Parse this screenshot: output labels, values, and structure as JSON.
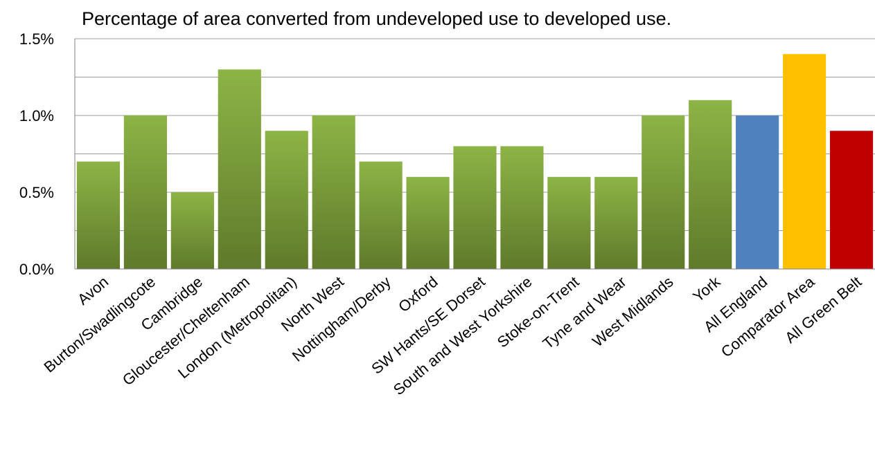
{
  "chart_data": {
    "type": "bar",
    "title": "Percentage of area converted from undeveloped use to developed use.",
    "xlabel": "",
    "ylabel": "",
    "ylim": [
      0,
      1.5
    ],
    "yticks": [
      "0.0%",
      "0.5%",
      "1.0%",
      "1.5%"
    ],
    "ytick_values": [
      0,
      0.5,
      1.0,
      1.5
    ],
    "grid": "horizontal",
    "categories": [
      "Avon",
      "Burton/Swadlingcote",
      "Cambridge",
      "Gloucester/Cheltenham",
      "London (Metropolitan)",
      "North West",
      "Nottingham/Derby",
      "Oxford",
      "SW Hants/SE Dorset",
      "South and West Yorkshire",
      "Stoke-on-Trent",
      "Tyne and Wear",
      "West Midlands",
      "York",
      "All England",
      "Comparator Area",
      "All Green Belt"
    ],
    "values": [
      0.7,
      1.0,
      0.5,
      1.3,
      0.9,
      1.0,
      0.7,
      0.6,
      0.8,
      0.8,
      0.6,
      0.6,
      1.0,
      1.1,
      1.0,
      1.4,
      0.9
    ],
    "bar_colors": [
      "#77933c",
      "#77933c",
      "#77933c",
      "#77933c",
      "#77933c",
      "#77933c",
      "#77933c",
      "#77933c",
      "#77933c",
      "#77933c",
      "#77933c",
      "#77933c",
      "#77933c",
      "#77933c",
      "#4f81bd",
      "#ffc000",
      "#c00000"
    ]
  }
}
